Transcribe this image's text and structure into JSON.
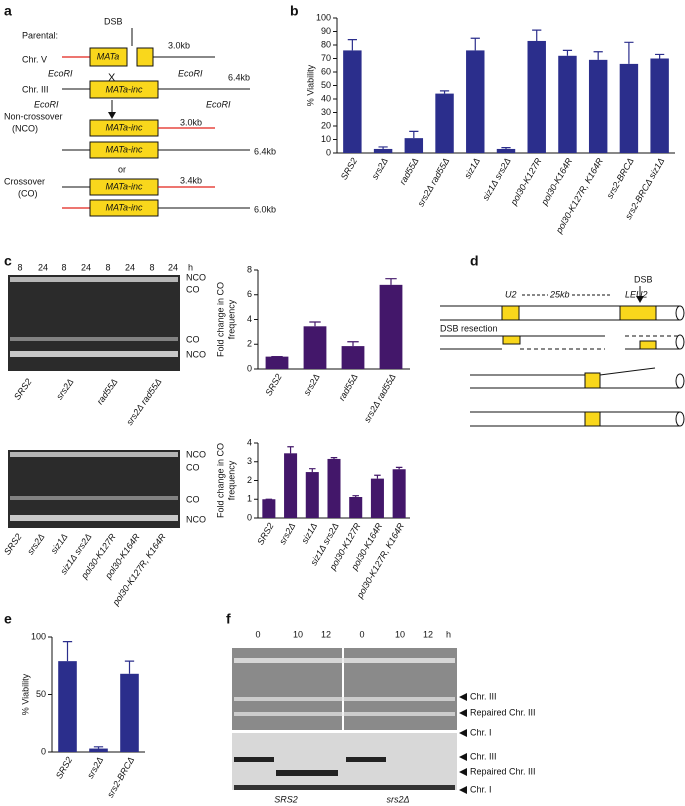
{
  "panel_labels": [
    "a",
    "b",
    "c",
    "d",
    "e",
    "f"
  ],
  "diagram_a": {
    "parental": "Parental:",
    "dsb": "DSB",
    "chromosomes": [
      "Chr. V",
      "Chr. III"
    ],
    "cross": "X",
    "boxes": [
      "MATa",
      "MATa-inc",
      "MATa-inc",
      "MATa-inc",
      "MATa-inc",
      "MATa-inc"
    ],
    "sizes": [
      "3.0kb",
      "6.4kb",
      "3.0kb",
      "6.4kb",
      "3.4kb",
      "6.0kb"
    ],
    "ecori": [
      "EcoRI",
      "EcoRI",
      "EcoRI",
      "EcoRI"
    ],
    "nco": [
      "Non-crossover",
      "(NCO)"
    ],
    "or": "or",
    "co": [
      "Crossover",
      "(CO)"
    ]
  },
  "gel_c": {
    "time_labels": [
      "8",
      "24",
      "8",
      "24",
      "8",
      "24",
      "8",
      "24"
    ],
    "unit": "h",
    "top_bands": [
      "NCO",
      "CO",
      "CO",
      "NCO"
    ],
    "bottom_bands": [
      "NCO",
      "CO",
      "CO",
      "NCO"
    ],
    "top_lanes": [
      "SRS2",
      "srs2Δ",
      "rad55Δ",
      "srs2Δ rad55Δ"
    ],
    "bottom_lanes": [
      "SRS2",
      "srs2Δ",
      "siz1Δ",
      "siz1Δ srs2Δ",
      "pol30-K127R",
      "pol30-K164R",
      "pol30-K127R, K164R"
    ]
  },
  "diagram_d": {
    "dsb": "DSB",
    "u2": "U2",
    "distance": "25kb",
    "leu2": "LEU2",
    "resection": "DSB resection"
  },
  "gel_f": {
    "time_labels": [
      "0",
      "10",
      "12",
      "0",
      "10",
      "12"
    ],
    "unit": "h",
    "top_bands": [
      "Chr. III",
      "Repaired Chr. III",
      "Chr. I"
    ],
    "bottom_bands": [
      "Chr. III",
      "Repaired Chr. III",
      "Chr. I"
    ],
    "strains": [
      "SRS2",
      "srs2Δ"
    ]
  },
  "chart_data": [
    {
      "type": "bar",
      "ylabel": [
        "% Viability"
      ],
      "color": "#2b2e8c",
      "categories": [
        "SRS2",
        "srs2Δ",
        "rad55Δ",
        "srs2Δ rad55Δ",
        "siz1Δ",
        "siz1Δ srs2Δ",
        "pol30-K127R",
        "pol30-K164R",
        "pol30-K127R, K164R",
        "srs2-BRCΔ",
        "srs2-BRCΔ siz1Δ"
      ],
      "values": [
        76,
        3,
        11,
        44,
        76,
        3,
        83,
        72,
        69,
        66,
        70
      ],
      "errors": [
        8,
        1.5,
        5,
        2,
        9,
        1,
        8,
        4,
        6,
        16,
        3
      ],
      "ylim": [
        0,
        100
      ],
      "yticks": [
        0,
        10,
        20,
        30,
        40,
        50,
        60,
        70,
        80,
        90,
        100
      ]
    },
    {
      "type": "bar",
      "ylabel": [
        "Fold change in CO",
        "frequency"
      ],
      "color": "#43176a",
      "categories": [
        "SRS2",
        "srs2Δ",
        "rad55Δ",
        "srs2Δ rad55Δ"
      ],
      "values": [
        1,
        3.45,
        1.85,
        6.8
      ],
      "errors": [
        0,
        0.35,
        0.35,
        0.5
      ],
      "ylim": [
        0,
        8
      ],
      "yticks": [
        0,
        2,
        4,
        6,
        8
      ]
    },
    {
      "type": "bar",
      "ylabel": [
        "Fold change in CO",
        "frequency"
      ],
      "color": "#43176a",
      "categories": [
        "SRS2",
        "srs2Δ",
        "siz1Δ",
        "siz1Δ srs2Δ",
        "pol30-K127R",
        "pol30-K164R",
        "pol30-K127R, K164R"
      ],
      "values": [
        1,
        3.45,
        2.45,
        3.15,
        1.12,
        2.1,
        2.6
      ],
      "errors": [
        0,
        0.35,
        0.18,
        0.07,
        0.07,
        0.18,
        0.1
      ],
      "ylim": [
        0,
        4
      ],
      "yticks": [
        0,
        1,
        2,
        3,
        4
      ]
    },
    {
      "type": "bar",
      "ylabel": [
        "% Viability"
      ],
      "color": "#2b2e8c",
      "categories": [
        "SRS2",
        "srs2Δ",
        "srs2-BRCΔ"
      ],
      "values": [
        79,
        3,
        68
      ],
      "errors": [
        17,
        1.5,
        11
      ],
      "ylim": [
        0,
        100
      ],
      "yticks": [
        0,
        50,
        100
      ]
    }
  ]
}
